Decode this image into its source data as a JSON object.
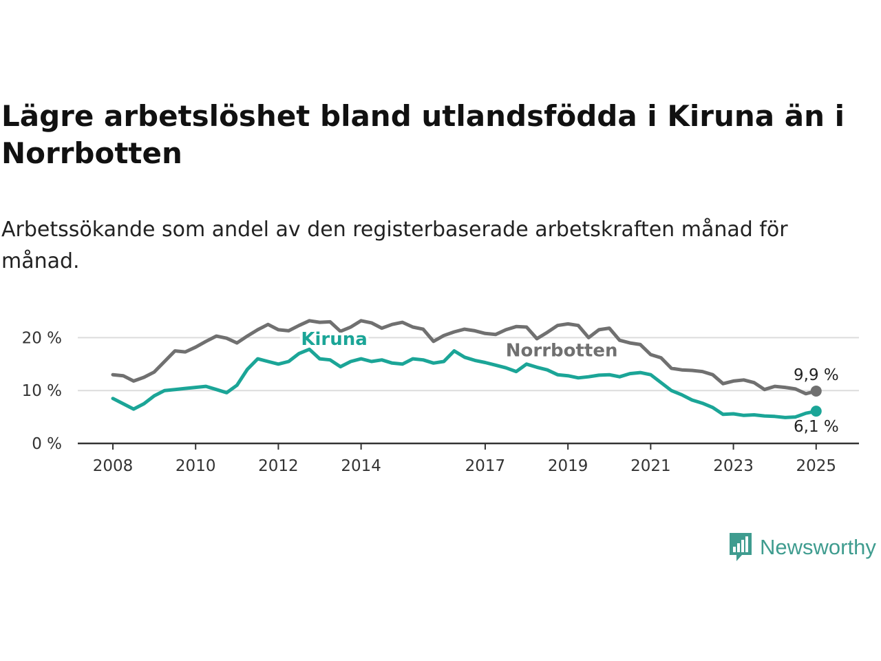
{
  "title": "Lägre arbetslöshet bland utlandsfödda i Kiruna än i Norrbotten",
  "subtitle": "Arbetssökande som andel av den registerbaserade arbetskraften månad för månad.",
  "logo": {
    "text": "Newsworthy",
    "icon": "chart-bubble-icon",
    "color": "#3f9c8f"
  },
  "chart_data": {
    "type": "line",
    "xlim": [
      2008,
      2025.17
    ],
    "ylim": [
      0,
      25
    ],
    "x_ticks": [
      2008,
      2010,
      2012,
      2014,
      2017,
      2019,
      2021,
      2023,
      2025
    ],
    "x_tick_labels": [
      "2008",
      "2010",
      "2012",
      "2014",
      "2017",
      "2019",
      "2021",
      "2023",
      "2025"
    ],
    "y_ticks": [
      0,
      10,
      20
    ],
    "y_tick_labels": [
      "0 %",
      "10 %",
      "20 %"
    ],
    "grid": "horizontal",
    "legend": "inline labels",
    "series": [
      {
        "name": "Norrbotten",
        "color": "#707070",
        "end_label": "9,9 %",
        "label_position": [
          2018.85,
          16.5
        ],
        "points": [
          [
            2008.0,
            13.0
          ],
          [
            2008.25,
            12.8
          ],
          [
            2008.5,
            11.8
          ],
          [
            2008.75,
            12.5
          ],
          [
            2009.0,
            13.5
          ],
          [
            2009.25,
            15.5
          ],
          [
            2009.5,
            17.5
          ],
          [
            2009.75,
            17.3
          ],
          [
            2010.0,
            18.2
          ],
          [
            2010.25,
            19.3
          ],
          [
            2010.5,
            20.3
          ],
          [
            2010.75,
            19.9
          ],
          [
            2011.0,
            19.0
          ],
          [
            2011.25,
            20.3
          ],
          [
            2011.5,
            21.5
          ],
          [
            2011.75,
            22.5
          ],
          [
            2012.0,
            21.5
          ],
          [
            2012.25,
            21.3
          ],
          [
            2012.5,
            22.3
          ],
          [
            2012.75,
            23.2
          ],
          [
            2013.0,
            22.9
          ],
          [
            2013.25,
            23.0
          ],
          [
            2013.5,
            21.2
          ],
          [
            2013.75,
            22.0
          ],
          [
            2014.0,
            23.2
          ],
          [
            2014.25,
            22.8
          ],
          [
            2014.5,
            21.8
          ],
          [
            2014.75,
            22.5
          ],
          [
            2015.0,
            22.9
          ],
          [
            2015.25,
            22.0
          ],
          [
            2015.5,
            21.6
          ],
          [
            2015.75,
            19.3
          ],
          [
            2016.0,
            20.4
          ],
          [
            2016.25,
            21.1
          ],
          [
            2016.5,
            21.6
          ],
          [
            2016.75,
            21.3
          ],
          [
            2017.0,
            20.8
          ],
          [
            2017.25,
            20.6
          ],
          [
            2017.5,
            21.5
          ],
          [
            2017.75,
            22.1
          ],
          [
            2018.0,
            22.0
          ],
          [
            2018.25,
            19.8
          ],
          [
            2018.5,
            21.0
          ],
          [
            2018.75,
            22.3
          ],
          [
            2019.0,
            22.6
          ],
          [
            2019.25,
            22.3
          ],
          [
            2019.5,
            20.0
          ],
          [
            2019.75,
            21.5
          ],
          [
            2020.0,
            21.8
          ],
          [
            2020.25,
            19.5
          ],
          [
            2020.5,
            19.0
          ],
          [
            2020.75,
            18.7
          ],
          [
            2021.0,
            16.8
          ],
          [
            2021.25,
            16.2
          ],
          [
            2021.5,
            14.2
          ],
          [
            2021.75,
            13.9
          ],
          [
            2022.0,
            13.8
          ],
          [
            2022.25,
            13.6
          ],
          [
            2022.5,
            13.0
          ],
          [
            2022.75,
            11.3
          ],
          [
            2023.0,
            11.8
          ],
          [
            2023.25,
            12.0
          ],
          [
            2023.5,
            11.5
          ],
          [
            2023.75,
            10.2
          ],
          [
            2024.0,
            10.8
          ],
          [
            2024.25,
            10.6
          ],
          [
            2024.5,
            10.3
          ],
          [
            2024.75,
            9.4
          ],
          [
            2025.0,
            9.9
          ]
        ]
      },
      {
        "name": "Kiruna",
        "color": "#1ba597",
        "end_label": "6,1 %",
        "label_position": [
          2013.35,
          18.6
        ],
        "points": [
          [
            2008.0,
            8.5
          ],
          [
            2008.25,
            7.5
          ],
          [
            2008.5,
            6.5
          ],
          [
            2008.75,
            7.5
          ],
          [
            2009.0,
            9.0
          ],
          [
            2009.25,
            10.0
          ],
          [
            2009.5,
            10.2
          ],
          [
            2009.75,
            10.4
          ],
          [
            2010.0,
            10.6
          ],
          [
            2010.25,
            10.8
          ],
          [
            2010.5,
            10.2
          ],
          [
            2010.75,
            9.6
          ],
          [
            2011.0,
            11.0
          ],
          [
            2011.25,
            14.0
          ],
          [
            2011.5,
            16.0
          ],
          [
            2011.75,
            15.5
          ],
          [
            2012.0,
            15.0
          ],
          [
            2012.25,
            15.5
          ],
          [
            2012.5,
            17.0
          ],
          [
            2012.75,
            17.8
          ],
          [
            2013.0,
            16.0
          ],
          [
            2013.25,
            15.8
          ],
          [
            2013.5,
            14.5
          ],
          [
            2013.75,
            15.5
          ],
          [
            2014.0,
            16.0
          ],
          [
            2014.25,
            15.5
          ],
          [
            2014.5,
            15.8
          ],
          [
            2014.75,
            15.2
          ],
          [
            2015.0,
            15.0
          ],
          [
            2015.25,
            16.0
          ],
          [
            2015.5,
            15.8
          ],
          [
            2015.75,
            15.2
          ],
          [
            2016.0,
            15.5
          ],
          [
            2016.25,
            17.5
          ],
          [
            2016.5,
            16.3
          ],
          [
            2016.75,
            15.7
          ],
          [
            2017.0,
            15.3
          ],
          [
            2017.25,
            14.8
          ],
          [
            2017.5,
            14.3
          ],
          [
            2017.75,
            13.6
          ],
          [
            2018.0,
            15.0
          ],
          [
            2018.25,
            14.4
          ],
          [
            2018.5,
            13.9
          ],
          [
            2018.75,
            13.0
          ],
          [
            2019.0,
            12.8
          ],
          [
            2019.25,
            12.4
          ],
          [
            2019.5,
            12.6
          ],
          [
            2019.75,
            12.9
          ],
          [
            2020.0,
            13.0
          ],
          [
            2020.25,
            12.6
          ],
          [
            2020.5,
            13.2
          ],
          [
            2020.75,
            13.4
          ],
          [
            2021.0,
            13.0
          ],
          [
            2021.25,
            11.5
          ],
          [
            2021.5,
            10.0
          ],
          [
            2021.75,
            9.2
          ],
          [
            2022.0,
            8.2
          ],
          [
            2022.25,
            7.6
          ],
          [
            2022.5,
            6.8
          ],
          [
            2022.75,
            5.5
          ],
          [
            2023.0,
            5.6
          ],
          [
            2023.25,
            5.3
          ],
          [
            2023.5,
            5.4
          ],
          [
            2023.75,
            5.2
          ],
          [
            2024.0,
            5.1
          ],
          [
            2024.25,
            4.9
          ],
          [
            2024.5,
            5.0
          ],
          [
            2024.75,
            5.7
          ],
          [
            2025.0,
            6.1
          ]
        ]
      }
    ]
  }
}
